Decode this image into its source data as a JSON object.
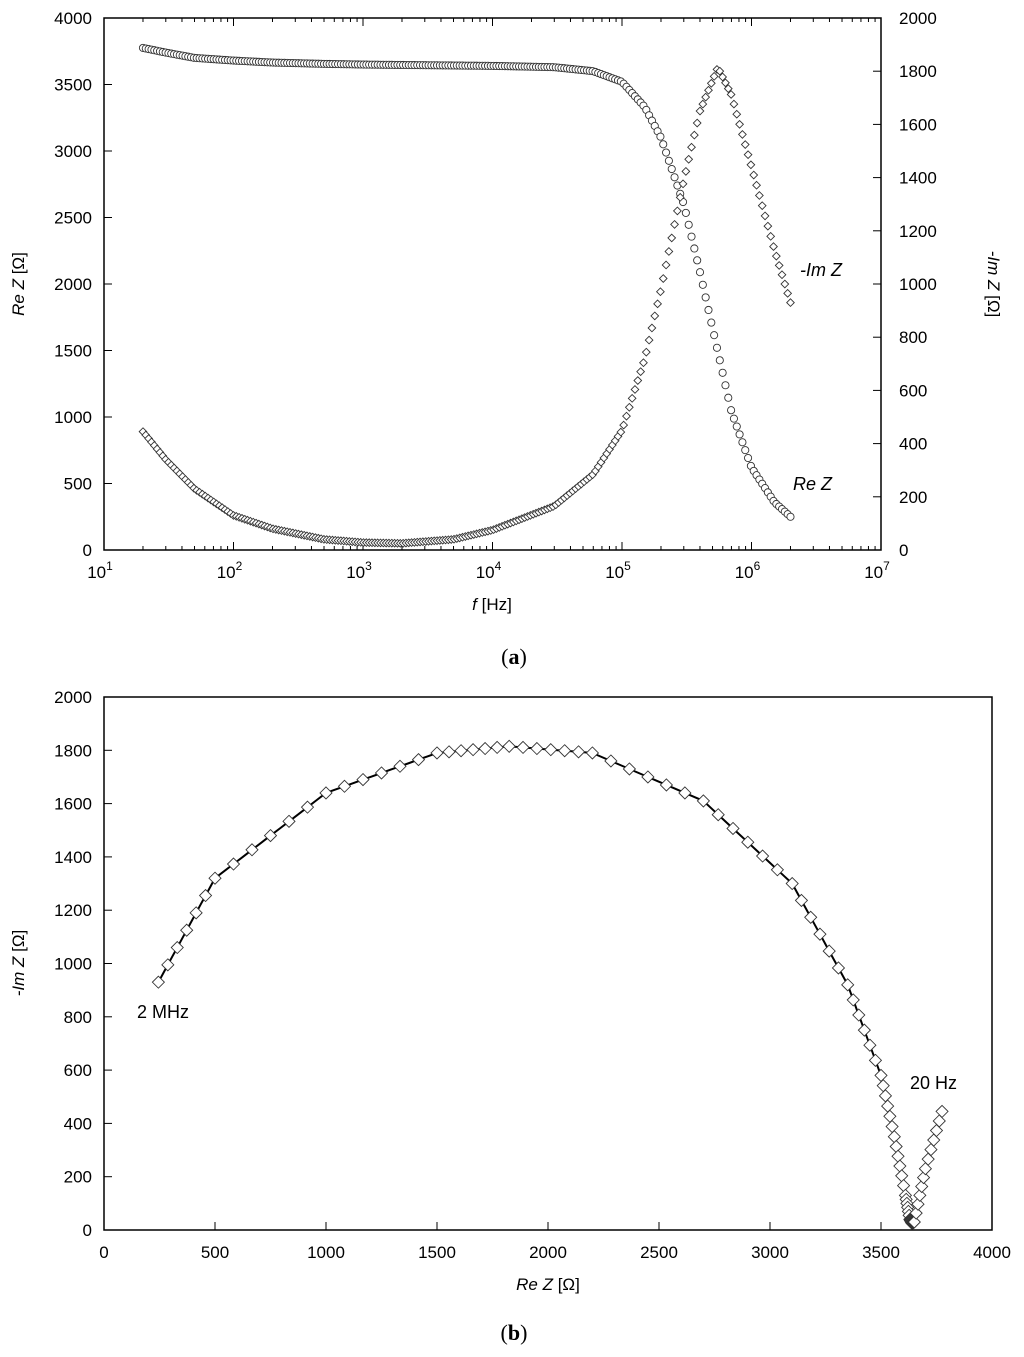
{
  "colors": {
    "axis": "#000000",
    "marker": "#333333",
    "fit": "#000000"
  },
  "chart_data": [
    {
      "panel_label": "a",
      "type": "scatter",
      "x_scale": "log",
      "xlim": [
        10,
        10000000
      ],
      "x_ticks": {
        "bases": [
          "10",
          "10",
          "10",
          "10",
          "10",
          "10",
          "10"
        ],
        "exponents": [
          "1",
          "2",
          "3",
          "4",
          "5",
          "6",
          "7"
        ]
      },
      "xlabel": {
        "var": "f",
        "unit": "[Hz]"
      },
      "left_axis": {
        "label": {
          "var": "Re Z",
          "unit": "[Ω]"
        },
        "ylim": [
          0,
          4000
        ],
        "ticks": [
          "0",
          "500",
          "1000",
          "1500",
          "2000",
          "2500",
          "3000",
          "3500",
          "4000"
        ]
      },
      "right_axis": {
        "label": {
          "var": "-Im Z",
          "unit": "[Ω]"
        },
        "ylim": [
          0,
          2000
        ],
        "ticks": [
          "0",
          "200",
          "400",
          "600",
          "800",
          "1000",
          "1200",
          "1400",
          "1600",
          "1800",
          "2000"
        ]
      },
      "series": [
        {
          "name": "Re Z",
          "marker": "circle",
          "axis": "left",
          "x": [
            20,
            30,
            50,
            100,
            200,
            500,
            1000,
            3000,
            10000,
            30000,
            60000,
            100000,
            150000,
            200000,
            300000,
            400000,
            550000,
            700000,
            1000000,
            1500000,
            2000000
          ],
          "y": [
            3775,
            3740,
            3700,
            3680,
            3665,
            3655,
            3650,
            3645,
            3640,
            3630,
            3600,
            3520,
            3330,
            3100,
            2600,
            2090,
            1490,
            1040,
            620,
            360,
            250
          ]
        },
        {
          "name": "-Im Z",
          "marker": "diamond",
          "axis": "right",
          "x": [
            20,
            30,
            50,
            100,
            200,
            500,
            1000,
            2000,
            5000,
            10000,
            30000,
            60000,
            100000,
            150000,
            200000,
            300000,
            400000,
            550000,
            700000,
            1000000,
            1500000,
            2000000
          ],
          "y": [
            445,
            340,
            230,
            130,
            80,
            40,
            28,
            25,
            40,
            75,
            165,
            285,
            450,
            720,
            980,
            1390,
            1650,
            1815,
            1710,
            1440,
            1130,
            930
          ]
        }
      ],
      "annotations": [
        {
          "text": "-Im Z",
          "x": 2600000,
          "y": 1050,
          "axis": "right"
        },
        {
          "text": "Re Z",
          "x": 1650000,
          "y": 500,
          "axis": "left"
        }
      ],
      "grid": false
    },
    {
      "panel_label": "b",
      "type": "scatter",
      "xlim": [
        0,
        4000
      ],
      "ylim": [
        0,
        2000
      ],
      "x_ticks": [
        "0",
        "500",
        "1000",
        "1500",
        "2000",
        "2500",
        "3000",
        "3500",
        "4000"
      ],
      "y_ticks": [
        "0",
        "200",
        "400",
        "600",
        "800",
        "1000",
        "1200",
        "1400",
        "1600",
        "1800",
        "2000"
      ],
      "xlabel": {
        "var": "Re Z",
        "unit": "[Ω]"
      },
      "ylabel": {
        "var": "-Im Z",
        "unit": "[Ω]"
      },
      "series": [
        {
          "name": "-Im Z vs Re Z",
          "marker": "diamond",
          "x": [
            245,
            500,
            1000,
            1500,
            1825,
            2200,
            2700,
            3100,
            3350,
            3500,
            3560,
            3610,
            3630,
            3640,
            3650,
            3700,
            3775
          ],
          "y": [
            930,
            1320,
            1640,
            1790,
            1815,
            1790,
            1610,
            1300,
            920,
            580,
            350,
            130,
            40,
            25,
            30,
            230,
            445
          ]
        },
        {
          "name": "fit",
          "marker": "none",
          "line": true,
          "x": [
            245,
            500,
            1000,
            1500,
            1825,
            2200,
            2700,
            3100,
            3350,
            3500,
            3560,
            3610,
            3630
          ],
          "y": [
            930,
            1320,
            1640,
            1790,
            1815,
            1790,
            1610,
            1300,
            920,
            580,
            350,
            130,
            40
          ]
        }
      ],
      "annotations": [
        {
          "text": "2 MHz",
          "x": 140,
          "y": 810
        },
        {
          "text": "20 Hz",
          "x": 3650,
          "y": 540
        }
      ],
      "grid": false
    }
  ]
}
